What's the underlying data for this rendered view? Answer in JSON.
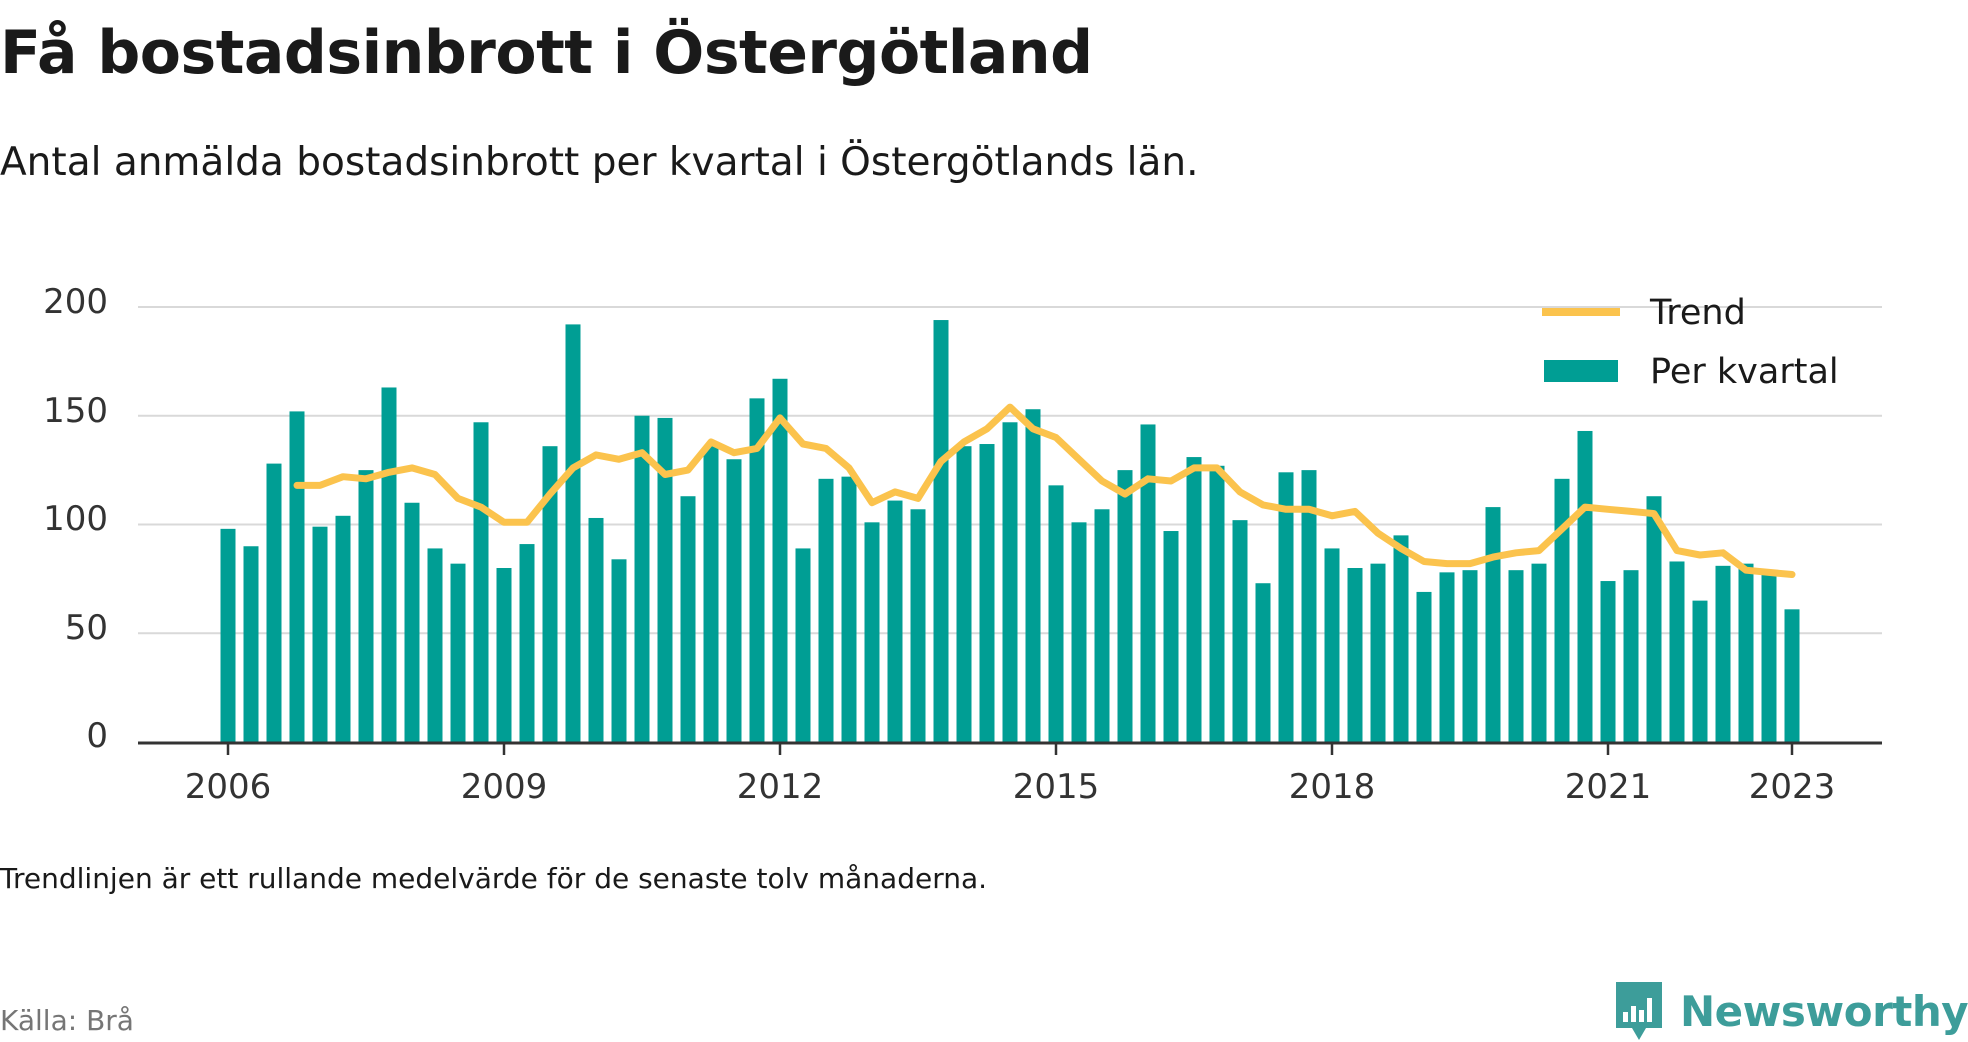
{
  "header": {
    "title": "Få bostadsinbrott i Östergötland",
    "subtitle": "Antal anmälda bostadsinbrott per kvartal i Östergötlands län."
  },
  "footer": {
    "note": "Trendlinjen är ett rullande medelvärde för de senaste tolv månaderna.",
    "source": "Källa: Brå",
    "brand": "Newsworthy",
    "brand_icon": "newsworthy-logo-icon"
  },
  "colors": {
    "bars": "#009e94",
    "trend": "#fbc34d",
    "grid": "#d9d9d9",
    "axis": "#333333",
    "brand": "#3d9d9a"
  },
  "chart_data": {
    "type": "bar",
    "x_start": "2006 Q1",
    "x_ticks": [
      "2006",
      "2009",
      "2012",
      "2015",
      "2018",
      "2021",
      "2023"
    ],
    "y_ticks": [
      "0",
      "50",
      "100",
      "150",
      "200"
    ],
    "ylim": [
      0,
      200
    ],
    "grid": true,
    "legend_position": "top-right",
    "legend": [
      "Trend",
      "Per kvartal"
    ],
    "series": [
      {
        "name": "Per kvartal",
        "kind": "bar",
        "values": [
          98,
          90,
          128,
          152,
          99,
          104,
          125,
          163,
          110,
          89,
          82,
          147,
          80,
          91,
          136,
          192,
          103,
          84,
          150,
          149,
          113,
          136,
          130,
          158,
          167,
          89,
          121,
          122,
          101,
          111,
          107,
          194,
          136,
          137,
          147,
          153,
          118,
          101,
          107,
          125,
          146,
          97,
          131,
          127,
          102,
          73,
          124,
          125,
          89,
          80,
          82,
          95,
          69,
          78,
          79,
          108,
          79,
          82,
          121,
          143,
          74,
          79,
          113,
          83,
          65,
          81,
          82,
          79,
          61
        ]
      },
      {
        "name": "Trend",
        "kind": "line",
        "values": [
          null,
          null,
          null,
          118,
          118,
          122,
          121,
          124,
          126,
          123,
          112,
          108,
          101,
          101,
          114,
          126,
          132,
          130,
          133,
          123,
          125,
          138,
          133,
          135,
          149,
          137,
          135,
          126,
          110,
          115,
          112,
          129,
          138,
          144,
          154,
          144,
          140,
          130,
          120,
          114,
          121,
          120,
          126,
          126,
          115,
          109,
          107,
          107,
          104,
          106,
          96,
          89,
          83,
          82,
          82,
          85,
          87,
          88,
          98,
          108,
          107,
          106,
          105,
          88,
          86,
          87,
          79,
          78,
          77
        ]
      }
    ]
  }
}
